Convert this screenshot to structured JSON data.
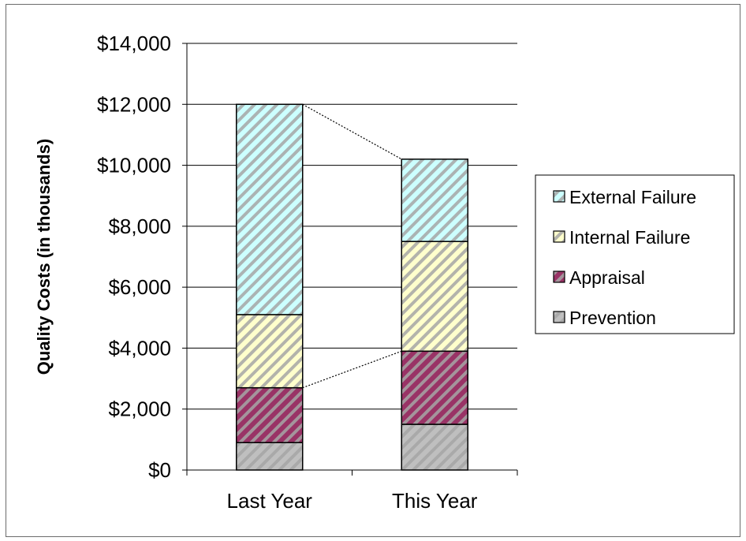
{
  "chart_data": {
    "type": "bar",
    "stacked": true,
    "categories": [
      "Last Year",
      "This Year"
    ],
    "series": [
      {
        "name": "Prevention",
        "values": [
          900,
          1500
        ],
        "color": "#bfbfbf"
      },
      {
        "name": "Appraisal",
        "values": [
          1800,
          2400
        ],
        "color": "#993366"
      },
      {
        "name": "Internal Failure",
        "values": [
          2400,
          3600
        ],
        "color": "#ffffcc"
      },
      {
        "name": "External Failure",
        "values": [
          6900,
          2700
        ],
        "color": "#ccffff"
      }
    ],
    "ylabel": "Quality Costs (in thousands)",
    "ylim": [
      0,
      14000
    ],
    "yticks": [
      0,
      2000,
      4000,
      6000,
      8000,
      10000,
      12000,
      14000
    ],
    "ytick_labels": [
      "$0",
      "$2,000",
      "$4,000",
      "$6,000",
      "$8,000",
      "$10,000",
      "$12,000",
      "$14,000"
    ],
    "grid": true,
    "legend_position": "right",
    "legend_order": [
      "External Failure",
      "Internal Failure",
      "Appraisal",
      "Prevention"
    ]
  }
}
